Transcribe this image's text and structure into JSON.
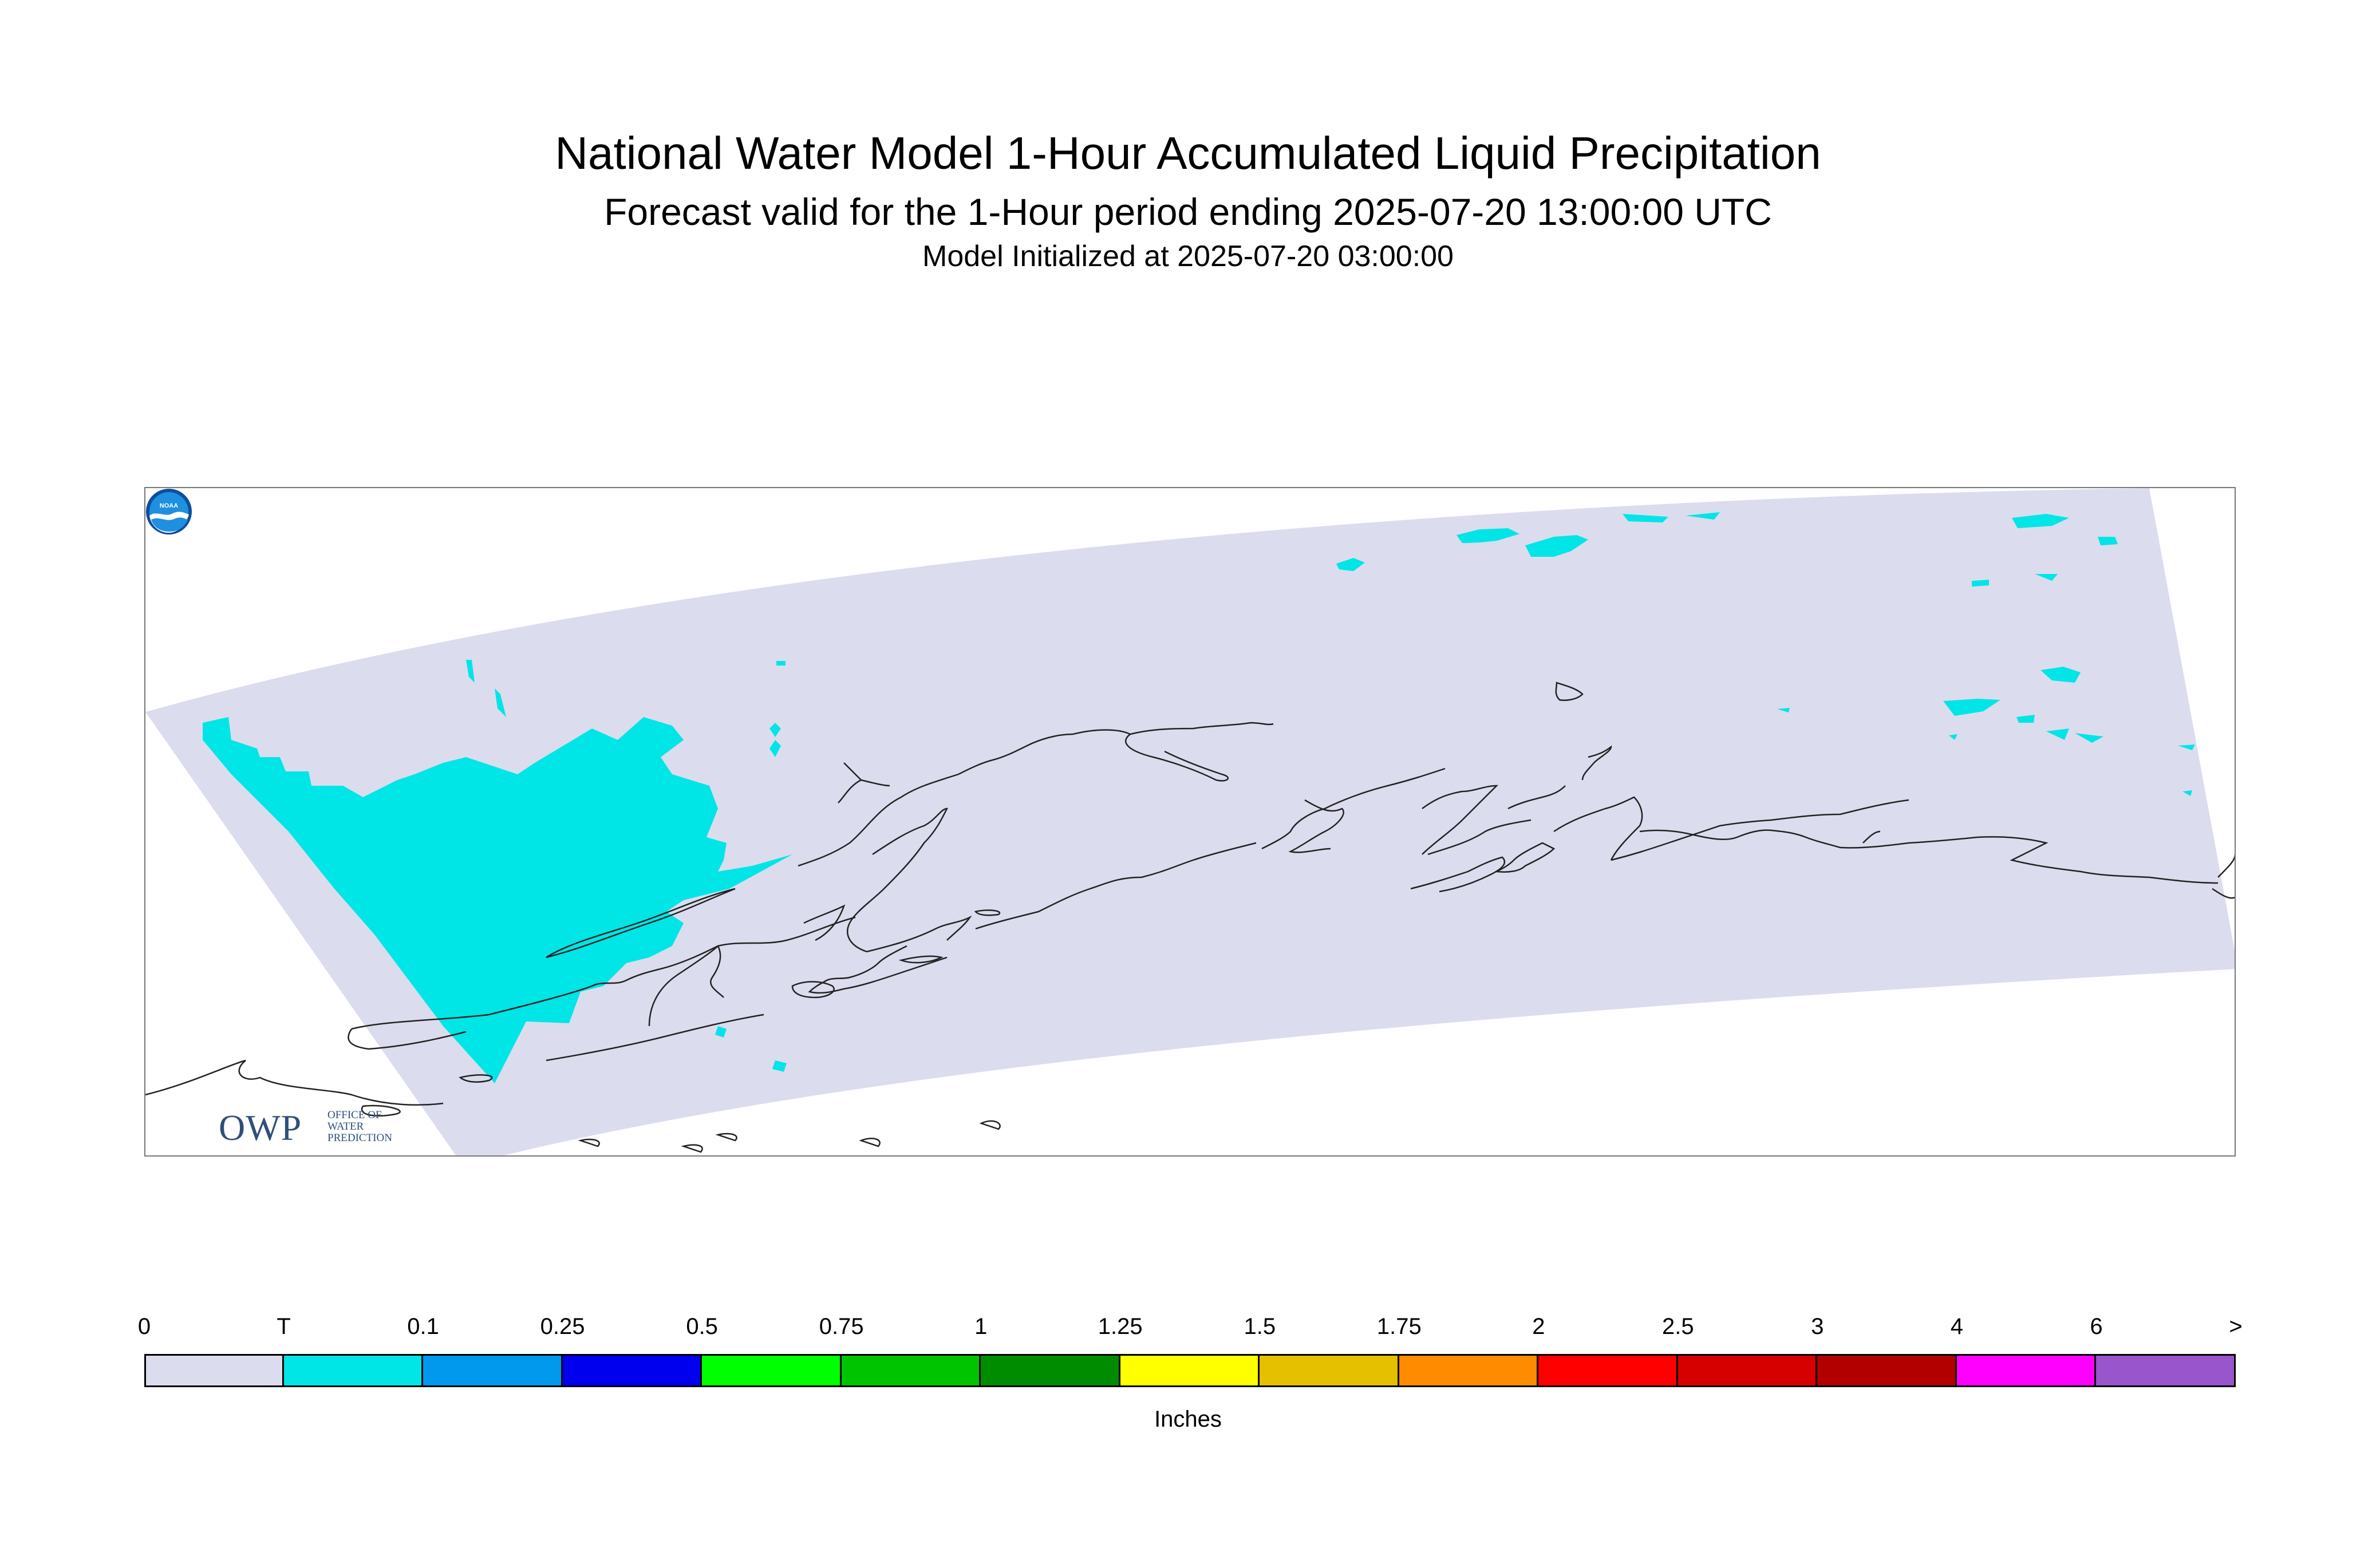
{
  "header": {
    "title": "National Water Model 1-Hour Accumulated Liquid Precipitation",
    "subtitle": "Forecast valid for the 1-Hour period ending 2025-07-20 13:00:00 UTC",
    "init": "Model Initialized at 2025-07-20 03:00:00"
  },
  "logos": {
    "owp_big": "OWP",
    "owp_small": [
      "OFFICE OF",
      "WATER",
      "PREDICTION"
    ],
    "noaa": "NOAA"
  },
  "colors": {
    "domain_fill": "#dcdcef",
    "precip_trace": "#00e5e5",
    "coastline": "#222222"
  },
  "legend": {
    "units": "Inches",
    "ticks": [
      "0",
      "T",
      "0.1",
      "0.25",
      "0.5",
      "0.75",
      "1",
      "1.25",
      "1.5",
      "1.75",
      "2",
      "2.5",
      "3",
      "4",
      "6",
      ">"
    ],
    "bins": [
      {
        "color": "#dcdcef"
      },
      {
        "color": "#00e5e5"
      },
      {
        "color": "#0099ee"
      },
      {
        "color": "#0000ee"
      },
      {
        "color": "#00ff00"
      },
      {
        "color": "#00c400"
      },
      {
        "color": "#008c00"
      },
      {
        "color": "#ffff00"
      },
      {
        "color": "#e5c000"
      },
      {
        "color": "#ff8c00"
      },
      {
        "color": "#ff0000"
      },
      {
        "color": "#d60000"
      },
      {
        "color": "#b20000"
      },
      {
        "color": "#ff00ff"
      },
      {
        "color": "#9955cc"
      }
    ]
  }
}
